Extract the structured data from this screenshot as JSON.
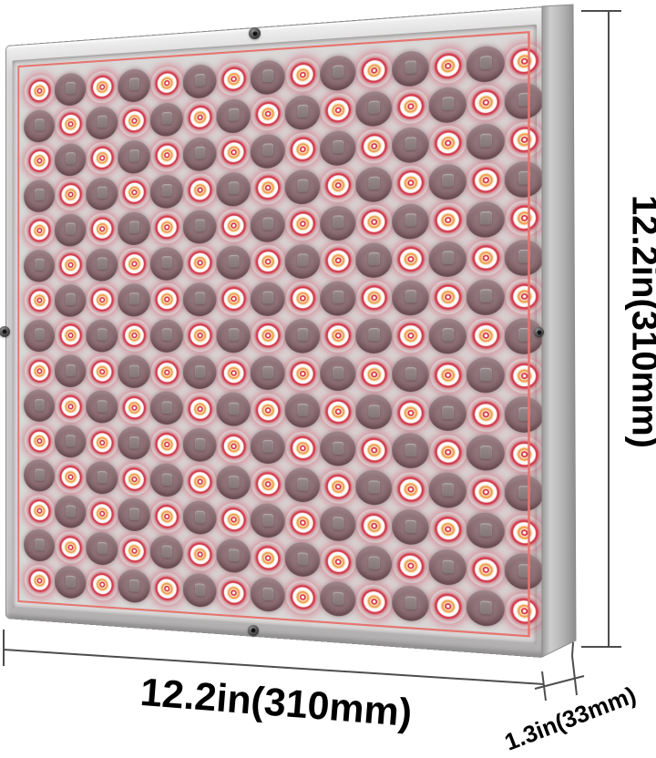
{
  "dimensions": {
    "height_label": "12.2in(310mm)",
    "width_label": "12.2in(310mm)",
    "depth_label": "1.3in(33mm)"
  },
  "panel": {
    "led_rows": 15,
    "led_cols": 15,
    "led_pattern": "checkerboard",
    "screws": [
      "top-center",
      "bottom-center",
      "left-middle",
      "right-middle"
    ],
    "colors": {
      "background": "#ffffff",
      "face": "#dad7d7",
      "frame": "#c9c7c7",
      "border-line": "#e4756f",
      "led-red": "#d43240",
      "led-orange": "#f0a055",
      "led-dark": "#8d7076",
      "metal-side": "#b5b5b5",
      "dim-line": "#4d4d4d",
      "text": "#000000"
    }
  }
}
